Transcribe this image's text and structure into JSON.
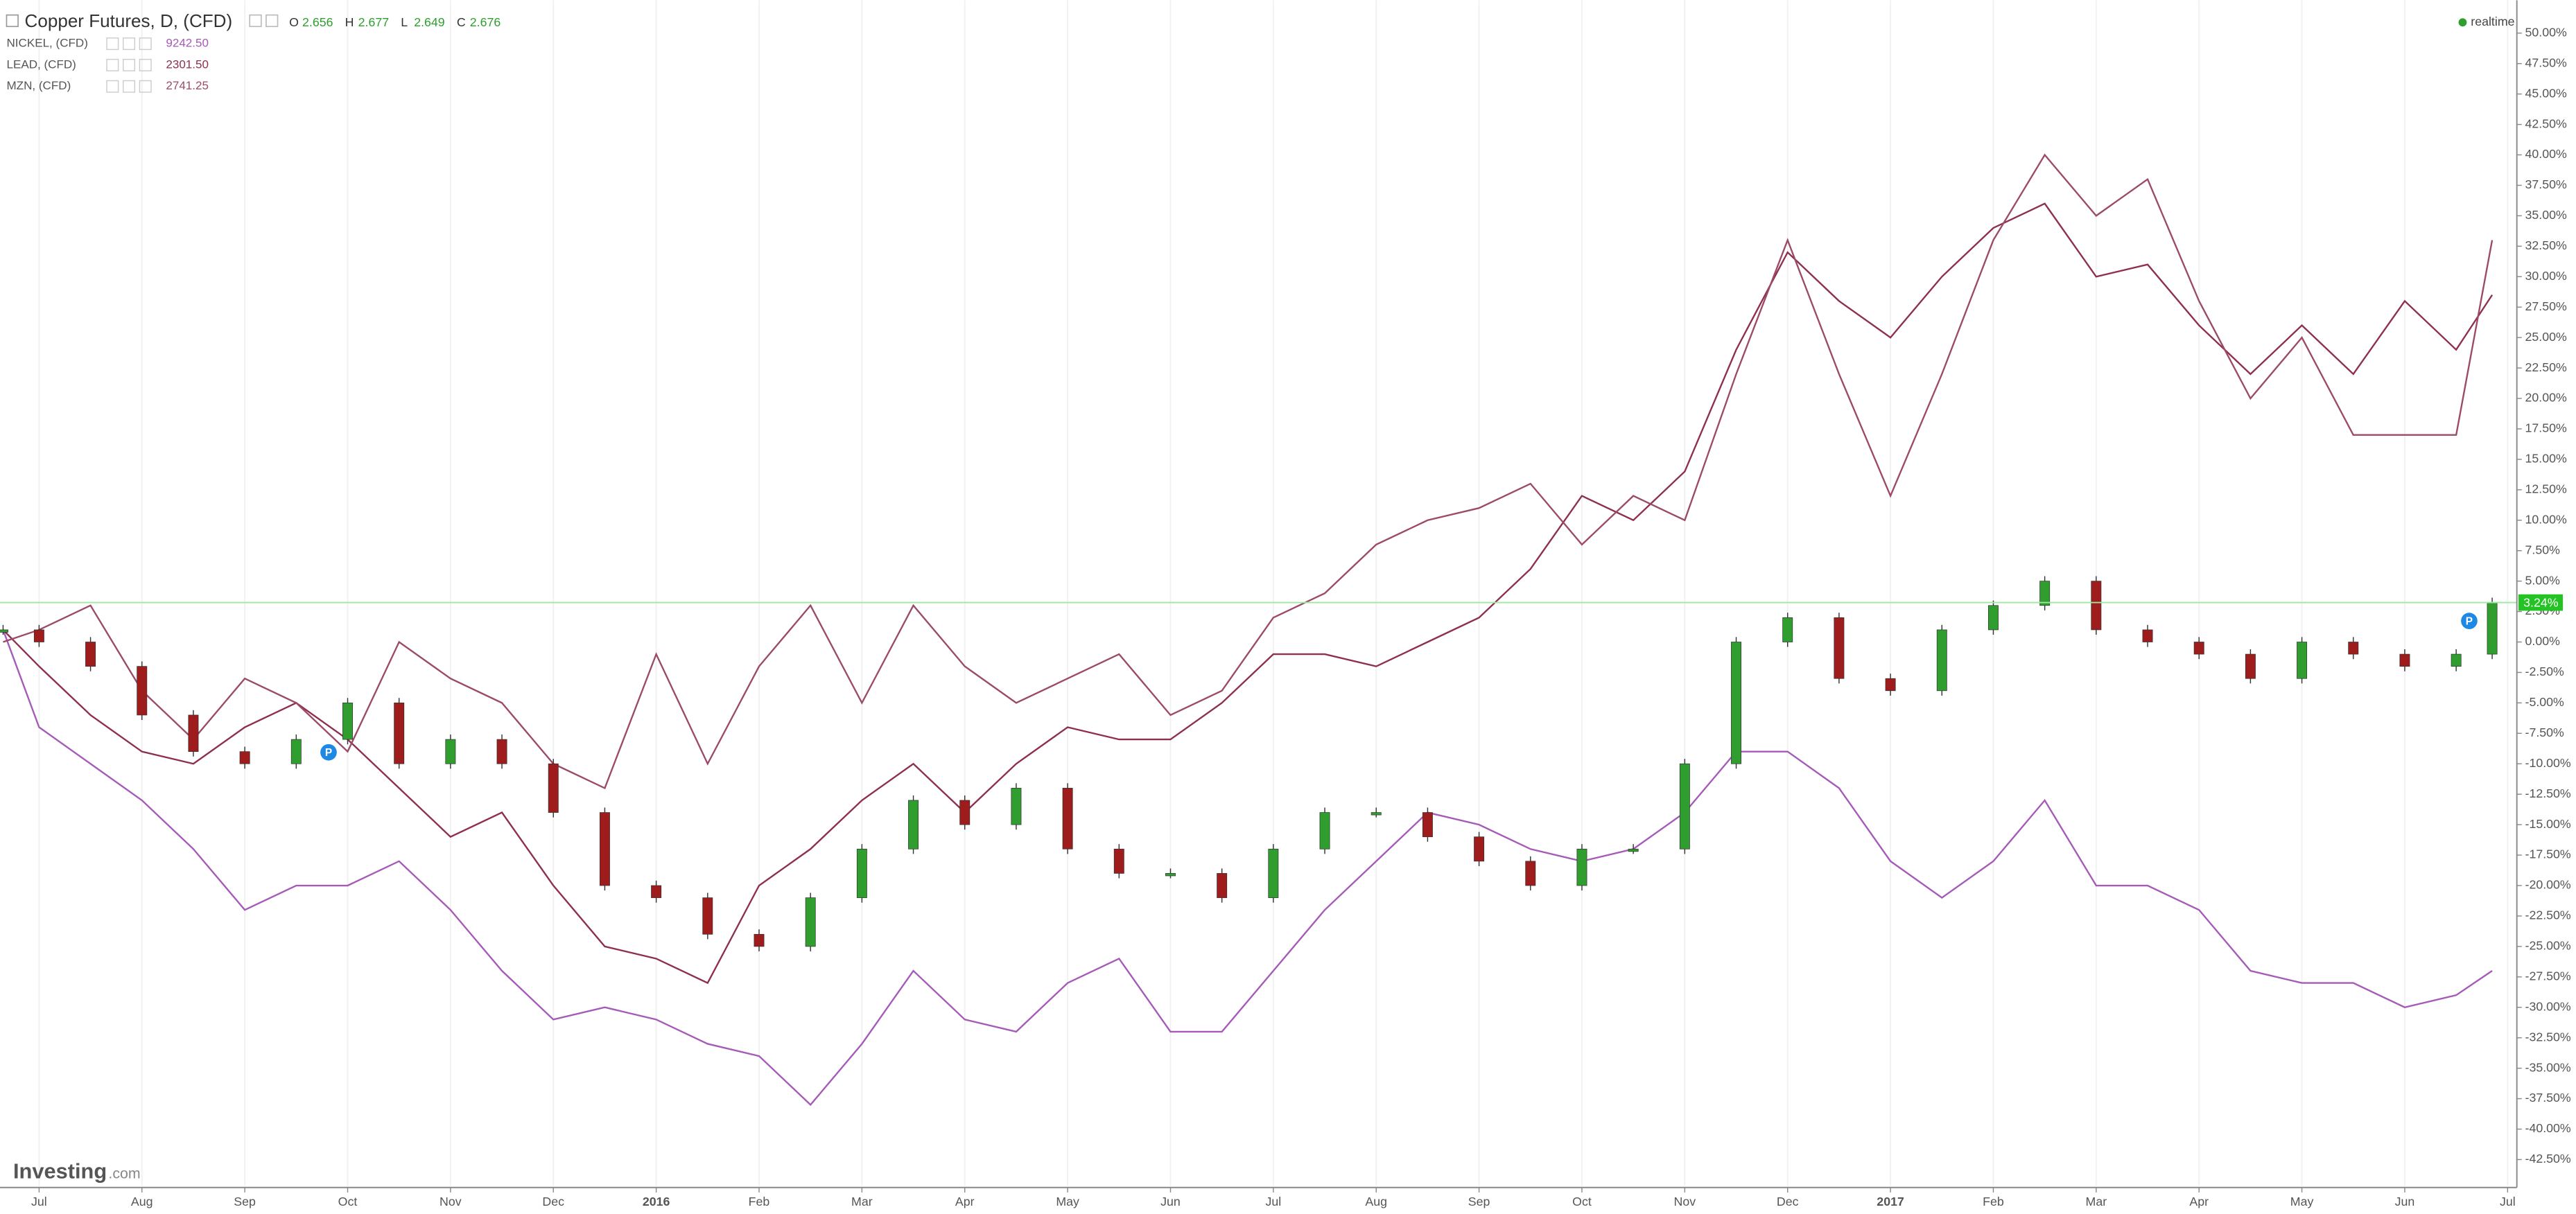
{
  "chart_data": {
    "type": "candlestick",
    "title": "Copper Futures, D, (CFD)",
    "ohlc": [
      {
        "label": "O",
        "value": "2.656"
      },
      {
        "label": "H",
        "value": "2.677"
      },
      {
        "label": "L",
        "value": "2.649"
      },
      {
        "label": "C",
        "value": "2.676"
      }
    ],
    "status": "realtime",
    "brand": "Investing",
    "brand_suffix": ".com",
    "event_marker": "P",
    "last_value_label": "3.24%",
    "color_up": "#2f9e2f",
    "color_down": "#9e1c1c",
    "grid": true,
    "x": [
      -0.35,
      0,
      0.5,
      1,
      1.5,
      2,
      2.5,
      3,
      3.5,
      4,
      4.5,
      5,
      5.5,
      6,
      6.5,
      7,
      7.5,
      8,
      8.5,
      9,
      9.5,
      10,
      10.5,
      11,
      11.5,
      12,
      12.5,
      13,
      13.5,
      14,
      14.5,
      15,
      15.5,
      16,
      16.5,
      17,
      17.5,
      18,
      18.5,
      19,
      19.5,
      20,
      20.5,
      21,
      21.5,
      22,
      22.5,
      23,
      23.5,
      23.85
    ],
    "values": [
      1,
      0,
      -2,
      -6,
      -9,
      -10,
      -8,
      -5,
      -10,
      -8,
      -10,
      -14,
      -20,
      -21,
      -24,
      -25,
      -21,
      -17,
      -13,
      -15,
      -12,
      -17,
      -19,
      -19,
      -21,
      -17,
      -14,
      -14,
      -16,
      -18,
      -20,
      -17,
      -17,
      -10,
      0,
      2,
      -3,
      -4,
      1,
      3,
      5,
      1,
      0,
      -1,
      -3,
      0,
      -1,
      -2,
      -1,
      3.24
    ],
    "series": [
      {
        "name": "NICKEL, (CFD)",
        "last": "9242.50",
        "type": "line",
        "color": "#a65ab8",
        "values": [
          1,
          -7,
          -10,
          -13,
          -17,
          -22,
          -20,
          -20,
          -18,
          -22,
          -27,
          -31,
          -30,
          -31,
          -33,
          -34,
          -38,
          -33,
          -27,
          -31,
          -32,
          -28,
          -26,
          -32,
          -32,
          -27,
          -22,
          -18,
          -14,
          -15,
          -17,
          -18,
          -17,
          -14,
          -9,
          -9,
          -12,
          -18,
          -21,
          -18,
          -13,
          -20,
          -20,
          -22,
          -27,
          -28,
          -28,
          -30,
          -29,
          -27
        ]
      },
      {
        "name": "LEAD, (CFD)",
        "last": "2301.50",
        "type": "line",
        "color": "#8e2f50",
        "values": [
          1,
          -2,
          -6,
          -9,
          -10,
          -7,
          -5,
          -8,
          -12,
          -16,
          -14,
          -20,
          -25,
          -26,
          -28,
          -20,
          -17,
          -13,
          -10,
          -14,
          -10,
          -7,
          -8,
          -8,
          -5,
          -1,
          -1,
          -2,
          0,
          2,
          6,
          12,
          10,
          14,
          24,
          32,
          28,
          25,
          30,
          34,
          36,
          30,
          31,
          26,
          22,
          26,
          22,
          28,
          24,
          28.5
        ]
      },
      {
        "name": "MZN, (CFD)",
        "last": "2741.25",
        "type": "line",
        "color": "#9c4a6a",
        "values": [
          0,
          1,
          3,
          -4,
          -8,
          -3,
          -5,
          -9,
          0,
          -3,
          -5,
          -10,
          -12,
          -1,
          -10,
          -2,
          3,
          -5,
          3,
          -2,
          -5,
          -3,
          -1,
          -6,
          -4,
          2,
          4,
          8,
          10,
          11,
          13,
          8,
          12,
          10,
          22,
          33,
          22,
          12,
          22,
          33,
          40,
          35,
          38,
          28,
          20,
          25,
          17,
          17,
          17,
          33
        ]
      }
    ],
    "xlim": [
      -0.38,
      24.09
    ],
    "xticks": [
      {
        "value": 0,
        "label": "Jul"
      },
      {
        "value": 1,
        "label": "Aug"
      },
      {
        "value": 2,
        "label": "Sep"
      },
      {
        "value": 3,
        "label": "Oct"
      },
      {
        "value": 4,
        "label": "Nov"
      },
      {
        "value": 5,
        "label": "Dec"
      },
      {
        "value": 6,
        "label": "2016"
      },
      {
        "value": 7,
        "label": "Feb"
      },
      {
        "value": 8,
        "label": "Mar"
      },
      {
        "value": 9,
        "label": "Apr"
      },
      {
        "value": 10,
        "label": "May"
      },
      {
        "value": 11,
        "label": "Jun"
      },
      {
        "value": 12,
        "label": "Jul"
      },
      {
        "value": 13,
        "label": "Aug"
      },
      {
        "value": 14,
        "label": "Sep"
      },
      {
        "value": 15,
        "label": "Oct"
      },
      {
        "value": 16,
        "label": "Nov"
      },
      {
        "value": 17,
        "label": "Dec"
      },
      {
        "value": 18,
        "label": "2017"
      },
      {
        "value": 19,
        "label": "Feb"
      },
      {
        "value": 20,
        "label": "Mar"
      },
      {
        "value": 21,
        "label": "Apr"
      },
      {
        "value": 22,
        "label": "May"
      },
      {
        "value": 23,
        "label": "Jun"
      },
      {
        "value": 24,
        "label": "Jul"
      }
    ],
    "ylim": [
      -44.66,
      52.7
    ],
    "yticks": [
      {
        "value": 50,
        "label": "50.00%"
      },
      {
        "value": 47.5,
        "label": "47.50%"
      },
      {
        "value": 45,
        "label": "45.00%"
      },
      {
        "value": 42.5,
        "label": "42.50%"
      },
      {
        "value": 40,
        "label": "40.00%"
      },
      {
        "value": 37.5,
        "label": "37.50%"
      },
      {
        "value": 35,
        "label": "35.00%"
      },
      {
        "value": 32.5,
        "label": "32.50%"
      },
      {
        "value": 30,
        "label": "30.00%"
      },
      {
        "value": 27.5,
        "label": "27.50%"
      },
      {
        "value": 25,
        "label": "25.00%"
      },
      {
        "value": 22.5,
        "label": "22.50%"
      },
      {
        "value": 20,
        "label": "20.00%"
      },
      {
        "value": 17.5,
        "label": "17.50%"
      },
      {
        "value": 15,
        "label": "15.00%"
      },
      {
        "value": 12.5,
        "label": "12.50%"
      },
      {
        "value": 10,
        "label": "10.00%"
      },
      {
        "value": 7.5,
        "label": "7.50%"
      },
      {
        "value": 5,
        "label": "5.00%"
      },
      {
        "value": 2.5,
        "label": "2.50%"
      },
      {
        "value": 0,
        "label": "0.00%"
      },
      {
        "value": -2.5,
        "label": "-2.50%"
      },
      {
        "value": -5,
        "label": "-5.00%"
      },
      {
        "value": -7.5,
        "label": "-7.50%"
      },
      {
        "value": -10,
        "label": "-10.00%"
      },
      {
        "value": -12.5,
        "label": "-12.50%"
      },
      {
        "value": -15,
        "label": "-15.00%"
      },
      {
        "value": -17.5,
        "label": "-17.50%"
      },
      {
        "value": -20,
        "label": "-20.00%"
      },
      {
        "value": -22.5,
        "label": "-22.50%"
      },
      {
        "value": -25,
        "label": "-25.00%"
      },
      {
        "value": -27.5,
        "label": "-27.50%"
      },
      {
        "value": -30,
        "label": "-30.00%"
      },
      {
        "value": -32.5,
        "label": "-32.50%"
      },
      {
        "value": -35,
        "label": "-35.00%"
      },
      {
        "value": -37.5,
        "label": "-37.50%"
      },
      {
        "value": -40,
        "label": "-40.00%"
      },
      {
        "value": -42.5,
        "label": "-42.50%"
      }
    ]
  }
}
